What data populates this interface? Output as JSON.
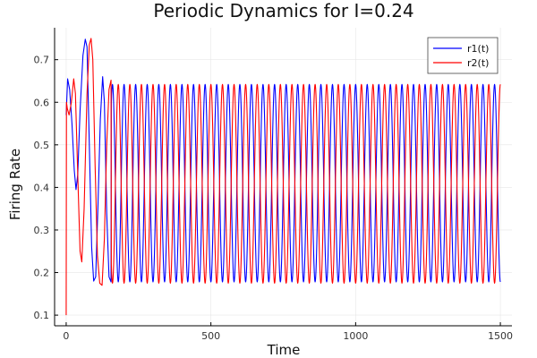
{
  "chart_data": {
    "type": "line",
    "title": "Periodic Dynamics for I=0.24",
    "xlabel": "Time",
    "ylabel": "Firing Rate",
    "xlim": [
      -40,
      1540
    ],
    "ylim": [
      0.075,
      0.775
    ],
    "xticks": [
      0,
      500,
      1000,
      1500
    ],
    "xtick_labels": [
      "0",
      "500",
      "1000",
      "1500"
    ],
    "yticks": [
      0.1,
      0.2,
      0.3,
      0.4,
      0.5,
      0.6,
      0.7
    ],
    "ytick_labels": [
      "0.1",
      "0.2",
      "0.3",
      "0.4",
      "0.5",
      "0.6",
      "0.7"
    ],
    "grid": true,
    "legend_position": "top-right",
    "x_max": 1500,
    "period": 40,
    "series": [
      {
        "name": "r1(t)",
        "color": "#0000ff",
        "start_value": 0.57,
        "peak_value": 0.642,
        "trough_value": 0.178,
        "phase_shift": 0,
        "transient_points": [
          [
            0,
            0.57
          ],
          [
            5,
            0.655
          ],
          [
            12,
            0.63
          ],
          [
            20,
            0.55
          ],
          [
            28,
            0.44
          ],
          [
            34,
            0.395
          ],
          [
            40,
            0.43
          ],
          [
            48,
            0.58
          ],
          [
            58,
            0.71
          ],
          [
            66,
            0.748
          ],
          [
            72,
            0.73
          ],
          [
            80,
            0.5
          ],
          [
            88,
            0.26
          ],
          [
            95,
            0.18
          ],
          [
            102,
            0.19
          ],
          [
            110,
            0.36
          ],
          [
            118,
            0.56
          ],
          [
            126,
            0.66
          ],
          [
            132,
            0.6
          ],
          [
            140,
            0.34
          ],
          [
            148,
            0.19
          ],
          [
            155,
            0.178
          ]
        ]
      },
      {
        "name": "r2(t)",
        "color": "#ff0000",
        "start_value": 0.1,
        "peak_value": 0.642,
        "trough_value": 0.175,
        "phase_shift": 20,
        "transient_points": [
          [
            0,
            0.1
          ],
          [
            1,
            0.6
          ],
          [
            4,
            0.585
          ],
          [
            10,
            0.57
          ],
          [
            18,
            0.6
          ],
          [
            26,
            0.655
          ],
          [
            32,
            0.62
          ],
          [
            40,
            0.43
          ],
          [
            48,
            0.25
          ],
          [
            54,
            0.225
          ],
          [
            62,
            0.35
          ],
          [
            72,
            0.62
          ],
          [
            80,
            0.735
          ],
          [
            86,
            0.75
          ],
          [
            92,
            0.7
          ],
          [
            100,
            0.45
          ],
          [
            108,
            0.24
          ],
          [
            116,
            0.175
          ],
          [
            124,
            0.17
          ],
          [
            132,
            0.28
          ],
          [
            140,
            0.5
          ],
          [
            148,
            0.63
          ],
          [
            155,
            0.652
          ]
        ]
      }
    ]
  }
}
